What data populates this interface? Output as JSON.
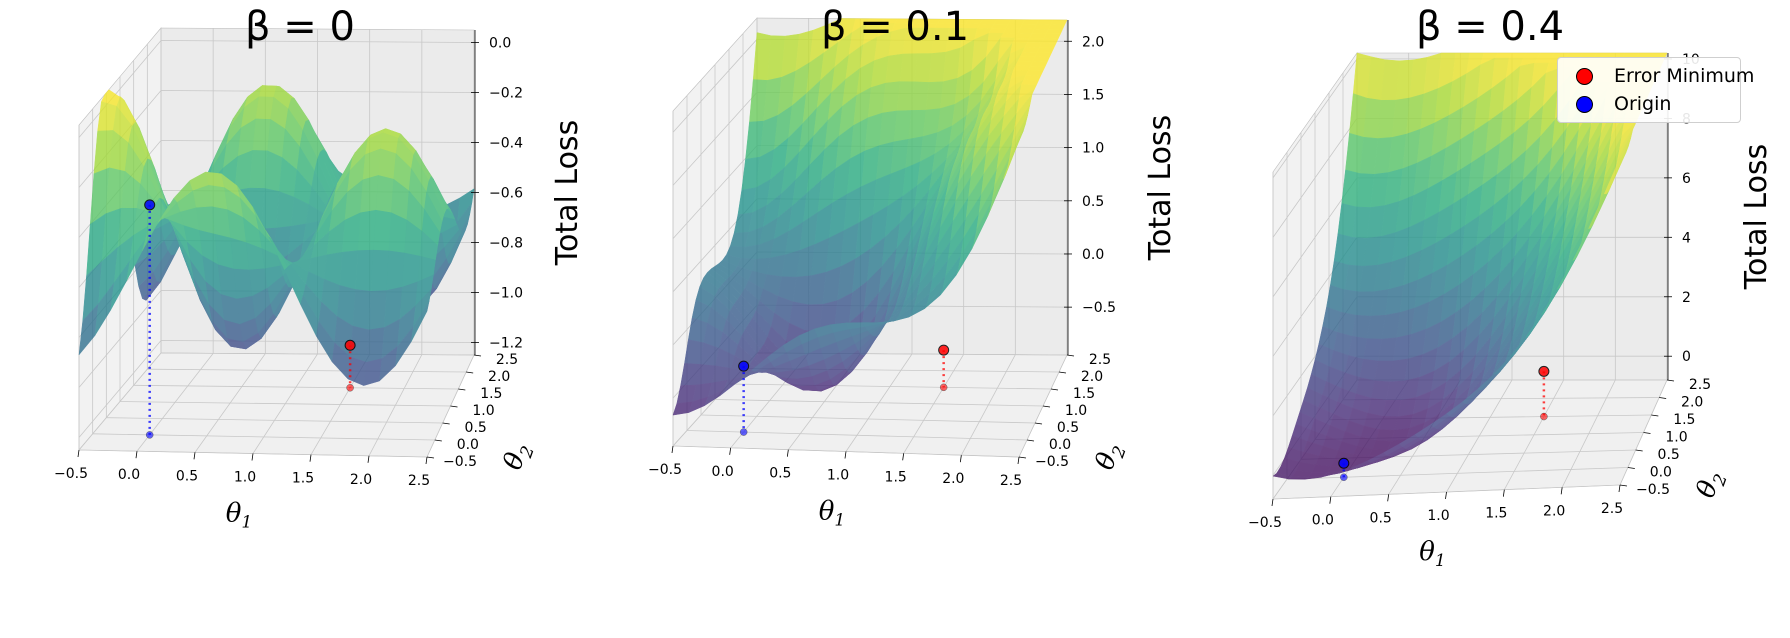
{
  "chart_data": [
    {
      "type": "surface3d",
      "title": "β = 0",
      "xlabel": "θ1",
      "ylabel": "θ2",
      "zlabel": "Total Loss",
      "xticks": [
        "−0.5",
        "0.0",
        "0.5",
        "1.0",
        "1.5",
        "2.0",
        "2.5"
      ],
      "yticks": [
        "−0.5",
        "0.0",
        "0.5",
        "1.0",
        "1.5",
        "2.0",
        "2.5"
      ],
      "zticks": [
        "0.0",
        "−0.2",
        "−0.4",
        "−0.6",
        "−0.8",
        "−1.0",
        "−1.2"
      ],
      "xlim": [
        -0.5,
        2.5
      ],
      "ylim": [
        -0.5,
        2.5
      ],
      "zlim": [
        -1.25,
        0.05
      ],
      "beta": 0,
      "points": [
        {
          "name": "Error Minimum",
          "theta1": 1.5,
          "theta2": 1.5,
          "loss": -1.08
        },
        {
          "name": "Origin",
          "theta1": 0.0,
          "theta2": 0.0,
          "loss": -0.33
        }
      ]
    },
    {
      "type": "surface3d",
      "title": "β = 0.1",
      "xlabel": "θ1",
      "ylabel": "θ2",
      "zlabel": "Total Loss",
      "xticks": [
        "−0.5",
        "0.0",
        "0.5",
        "1.0",
        "1.5",
        "2.0",
        "2.5"
      ],
      "yticks": [
        "−0.5",
        "0.0",
        "0.5",
        "1.0",
        "1.5",
        "2.0",
        "2.5"
      ],
      "zticks": [
        "2.0",
        "1.5",
        "1.0",
        "0.5",
        "0.0",
        "−0.5"
      ],
      "xlim": [
        -0.5,
        2.5
      ],
      "ylim": [
        -0.5,
        2.5
      ],
      "zlim": [
        -0.95,
        2.2
      ],
      "beta": 0.1,
      "points": [
        {
          "name": "Error Minimum",
          "theta1": 1.5,
          "theta2": 1.5,
          "loss": -0.6
        },
        {
          "name": "Origin",
          "theta1": 0.0,
          "theta2": 0.0,
          "loss": -0.33
        }
      ]
    },
    {
      "type": "surface3d",
      "title": "β = 0.4",
      "xlabel": "θ1",
      "ylabel": "θ2",
      "zlabel": "Total Loss",
      "xticks": [
        "−0.5",
        "0.0",
        "0.5",
        "1.0",
        "1.5",
        "2.0",
        "2.5"
      ],
      "yticks": [
        "−0.5",
        "0.0",
        "0.5",
        "1.0",
        "1.5",
        "2.0",
        "2.5"
      ],
      "zticks": [
        "10",
        "8",
        "6",
        "4",
        "2",
        "0"
      ],
      "xlim": [
        -0.5,
        2.5
      ],
      "ylim": [
        -0.5,
        2.5
      ],
      "zlim": [
        -0.8,
        10.2
      ],
      "beta": 0.4,
      "points": [
        {
          "name": "Error Minimum",
          "theta1": 1.5,
          "theta2": 1.5,
          "loss": 0.72
        },
        {
          "name": "Origin",
          "theta1": 0.0,
          "theta2": 0.0,
          "loss": -0.33
        }
      ]
    }
  ],
  "legend": {
    "items": [
      {
        "label": "Error Minimum",
        "color": "#ff0000"
      },
      {
        "label": "Origin",
        "color": "#0000ff"
      }
    ]
  },
  "colors": {
    "error_minimum": "#ff0000",
    "origin": "#0000ff",
    "pane": "#f2f2f2",
    "grid": "#c8c8c8",
    "colormap": "viridis"
  }
}
